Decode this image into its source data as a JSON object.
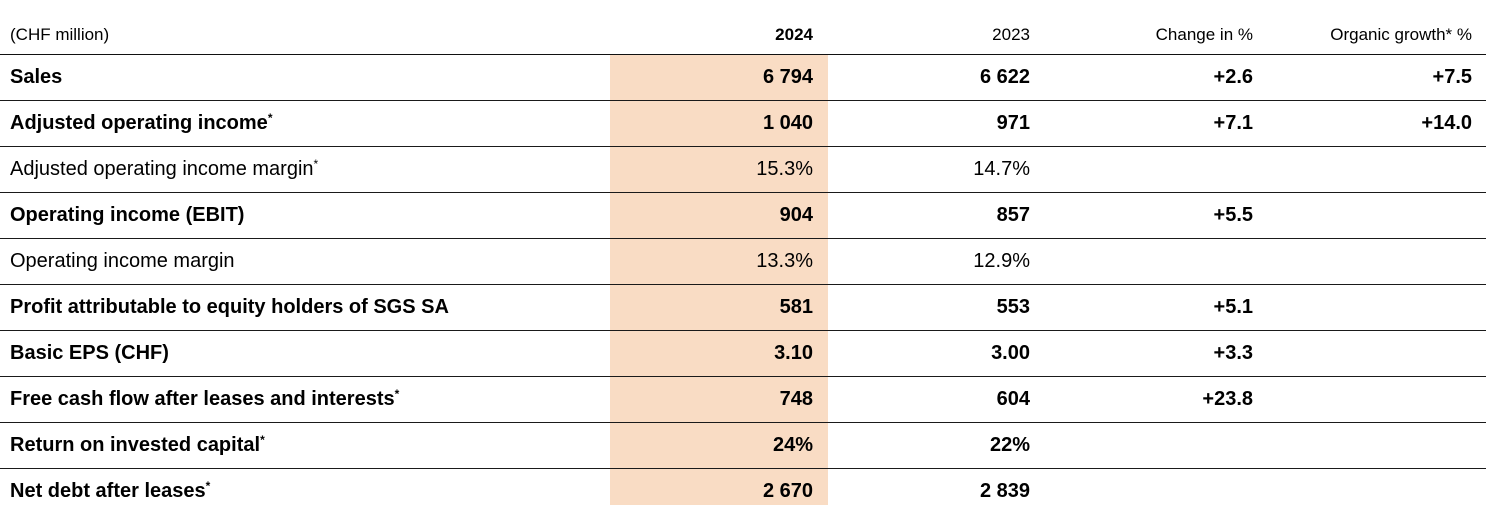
{
  "table": {
    "highlight_color": "#f9dcc4",
    "header": {
      "unit": "(CHF million)",
      "col_2024": "2024",
      "col_2023": "2023",
      "col_change": "Change in %",
      "col_organic": "Organic growth* %"
    },
    "rows": [
      {
        "label": "Sales",
        "note": "",
        "bold": true,
        "y2024": "6 794",
        "y2023": "6 622",
        "change": "+2.6",
        "organic": "+7.5"
      },
      {
        "label": "Adjusted operating income",
        "note": "*",
        "bold": true,
        "y2024": "1 040",
        "y2023": "971",
        "change": "+7.1",
        "organic": "+14.0"
      },
      {
        "label": "Adjusted operating income margin",
        "note": "*",
        "bold": false,
        "y2024": "15.3%",
        "y2023": "14.7%",
        "change": "",
        "organic": ""
      },
      {
        "label": "Operating income (EBIT)",
        "note": "",
        "bold": true,
        "y2024": "904",
        "y2023": "857",
        "change": "+5.5",
        "organic": ""
      },
      {
        "label": "Operating income margin",
        "note": "",
        "bold": false,
        "y2024": "13.3%",
        "y2023": "12.9%",
        "change": "",
        "organic": ""
      },
      {
        "label": "Profit attributable to equity holders of SGS SA",
        "note": "",
        "bold": true,
        "y2024": "581",
        "y2023": "553",
        "change": "+5.1",
        "organic": ""
      },
      {
        "label": "Basic EPS (CHF)",
        "note": "",
        "bold": true,
        "y2024": "3.10",
        "y2023": "3.00",
        "change": "+3.3",
        "organic": ""
      },
      {
        "label": "Free cash flow after leases and interests",
        "note": "*",
        "bold": true,
        "y2024": "748",
        "y2023": "604",
        "change": "+23.8",
        "organic": ""
      },
      {
        "label": "Return on invested capital",
        "note": "*",
        "bold": true,
        "y2024": "24%",
        "y2023": "22%",
        "change": "",
        "organic": ""
      },
      {
        "label": "Net debt after leases",
        "note": "*",
        "bold": true,
        "y2024": "2 670",
        "y2023": "2 839",
        "change": "",
        "organic": ""
      }
    ]
  }
}
